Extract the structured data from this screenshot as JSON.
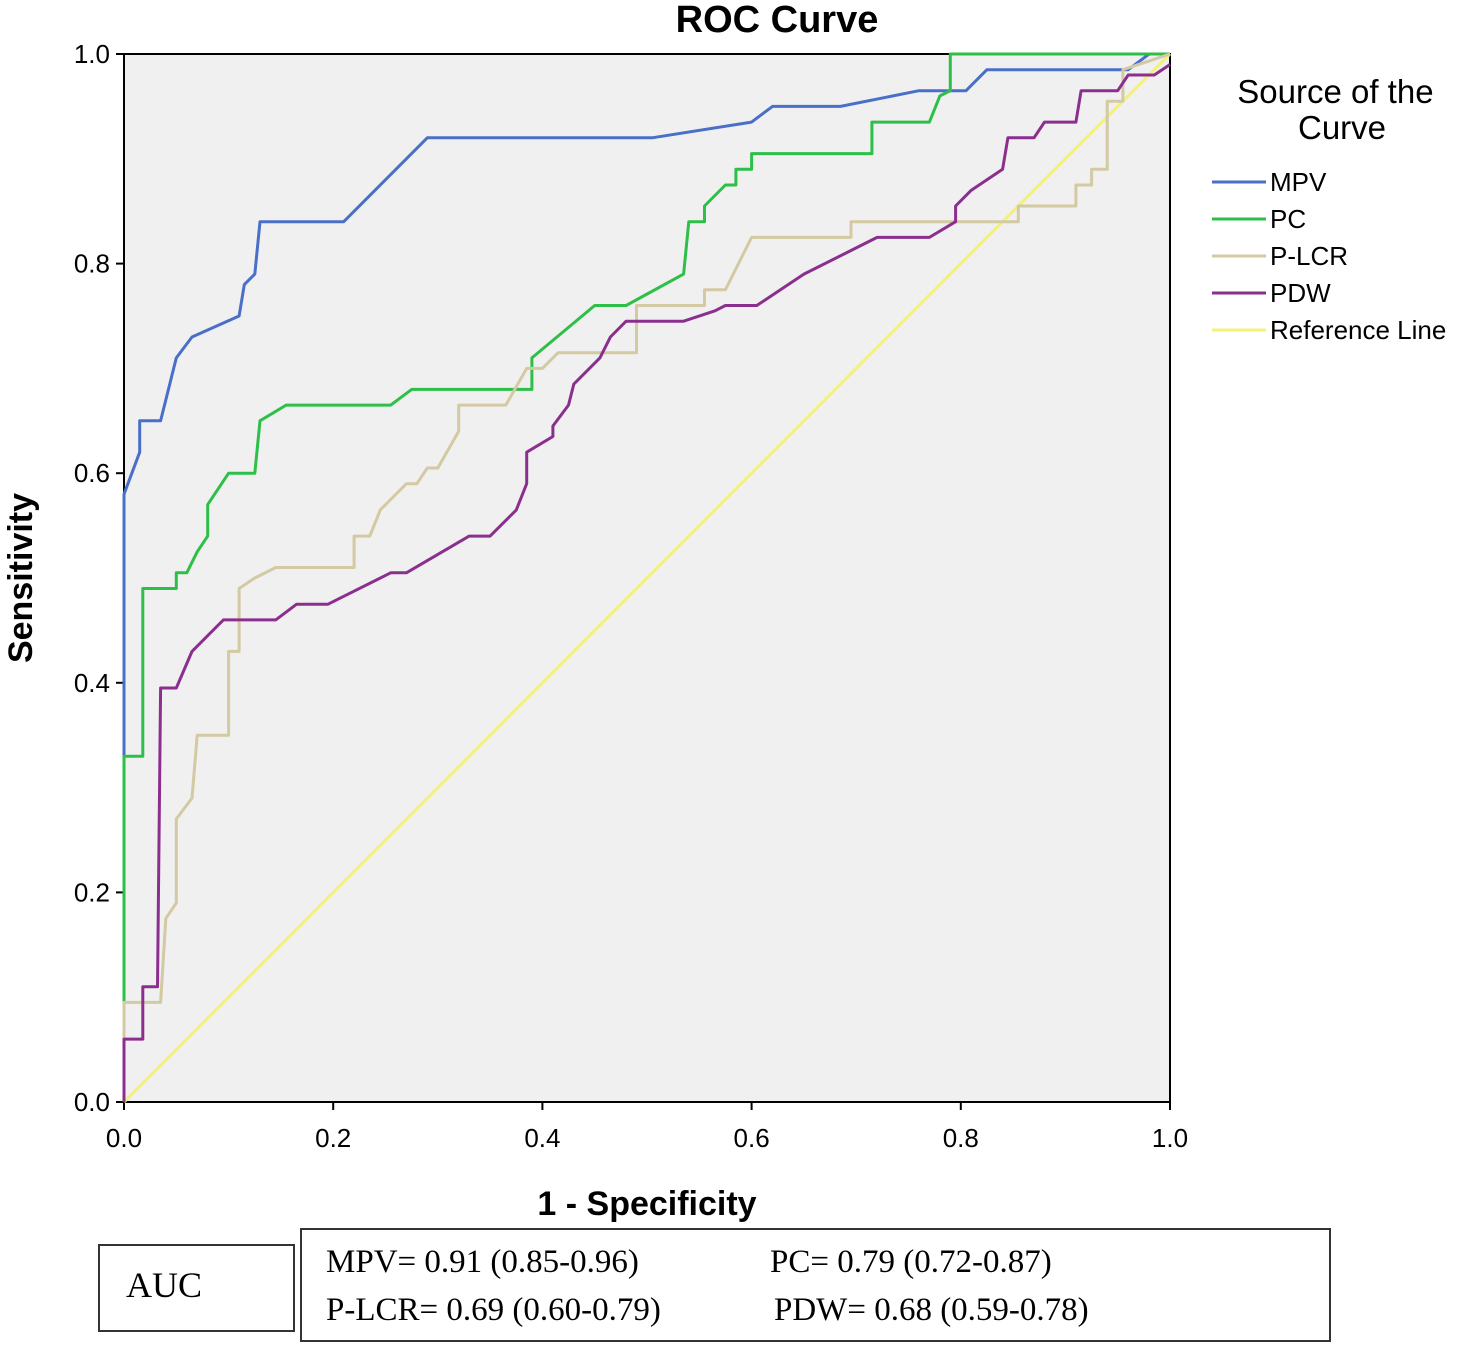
{
  "chart_data": {
    "type": "line",
    "title": "ROC Curve",
    "xlabel": "1 - Specificity",
    "ylabel": "Sensitivity",
    "xlim": [
      0,
      1
    ],
    "ylim": [
      0,
      1
    ],
    "x_ticks": [
      "0.0",
      "0.2",
      "0.4",
      "0.6",
      "0.8",
      "1.0"
    ],
    "y_ticks": [
      "0.0",
      "0.2",
      "0.4",
      "0.6",
      "0.8",
      "1.0"
    ],
    "grid": false,
    "legend_title": "Source of the Curve",
    "legend_position": "right",
    "series": [
      {
        "name": "MPV",
        "color": "#4a6fc7",
        "points": [
          [
            0,
            0
          ],
          [
            0,
            0.58
          ],
          [
            0.015,
            0.62
          ],
          [
            0.015,
            0.65
          ],
          [
            0.035,
            0.65
          ],
          [
            0.05,
            0.71
          ],
          [
            0.065,
            0.73
          ],
          [
            0.11,
            0.75
          ],
          [
            0.115,
            0.78
          ],
          [
            0.125,
            0.79
          ],
          [
            0.13,
            0.84
          ],
          [
            0.21,
            0.84
          ],
          [
            0.29,
            0.92
          ],
          [
            0.505,
            0.92
          ],
          [
            0.6,
            0.935
          ],
          [
            0.62,
            0.95
          ],
          [
            0.685,
            0.95
          ],
          [
            0.76,
            0.965
          ],
          [
            0.805,
            0.965
          ],
          [
            0.825,
            0.985
          ],
          [
            0.96,
            0.985
          ],
          [
            0.98,
            1.0
          ],
          [
            1.0,
            1.0
          ]
        ]
      },
      {
        "name": "PC",
        "color": "#2ebf48",
        "points": [
          [
            0,
            0
          ],
          [
            0,
            0.33
          ],
          [
            0.018,
            0.33
          ],
          [
            0.018,
            0.49
          ],
          [
            0.05,
            0.49
          ],
          [
            0.05,
            0.505
          ],
          [
            0.06,
            0.505
          ],
          [
            0.07,
            0.525
          ],
          [
            0.08,
            0.54
          ],
          [
            0.08,
            0.57
          ],
          [
            0.1,
            0.6
          ],
          [
            0.125,
            0.6
          ],
          [
            0.13,
            0.65
          ],
          [
            0.155,
            0.665
          ],
          [
            0.255,
            0.665
          ],
          [
            0.275,
            0.68
          ],
          [
            0.39,
            0.68
          ],
          [
            0.39,
            0.71
          ],
          [
            0.45,
            0.76
          ],
          [
            0.48,
            0.76
          ],
          [
            0.535,
            0.79
          ],
          [
            0.54,
            0.84
          ],
          [
            0.555,
            0.84
          ],
          [
            0.555,
            0.855
          ],
          [
            0.575,
            0.875
          ],
          [
            0.585,
            0.875
          ],
          [
            0.585,
            0.89
          ],
          [
            0.6,
            0.89
          ],
          [
            0.6,
            0.905
          ],
          [
            0.715,
            0.905
          ],
          [
            0.715,
            0.935
          ],
          [
            0.77,
            0.935
          ],
          [
            0.78,
            0.96
          ],
          [
            0.79,
            0.965
          ],
          [
            0.79,
            1.0
          ],
          [
            1.0,
            1.0
          ]
        ]
      },
      {
        "name": "P-LCR",
        "color": "#d3c9a2",
        "points": [
          [
            0,
            0
          ],
          [
            0,
            0.095
          ],
          [
            0.035,
            0.095
          ],
          [
            0.04,
            0.175
          ],
          [
            0.05,
            0.19
          ],
          [
            0.05,
            0.27
          ],
          [
            0.065,
            0.29
          ],
          [
            0.07,
            0.35
          ],
          [
            0.1,
            0.35
          ],
          [
            0.1,
            0.43
          ],
          [
            0.11,
            0.43
          ],
          [
            0.11,
            0.49
          ],
          [
            0.125,
            0.5
          ],
          [
            0.145,
            0.51
          ],
          [
            0.22,
            0.51
          ],
          [
            0.22,
            0.54
          ],
          [
            0.235,
            0.54
          ],
          [
            0.245,
            0.565
          ],
          [
            0.27,
            0.59
          ],
          [
            0.28,
            0.59
          ],
          [
            0.29,
            0.605
          ],
          [
            0.3,
            0.605
          ],
          [
            0.32,
            0.64
          ],
          [
            0.32,
            0.665
          ],
          [
            0.365,
            0.665
          ],
          [
            0.385,
            0.7
          ],
          [
            0.4,
            0.7
          ],
          [
            0.415,
            0.715
          ],
          [
            0.49,
            0.715
          ],
          [
            0.49,
            0.76
          ],
          [
            0.555,
            0.76
          ],
          [
            0.555,
            0.775
          ],
          [
            0.575,
            0.775
          ],
          [
            0.6,
            0.825
          ],
          [
            0.695,
            0.825
          ],
          [
            0.695,
            0.84
          ],
          [
            0.855,
            0.84
          ],
          [
            0.855,
            0.855
          ],
          [
            0.91,
            0.855
          ],
          [
            0.91,
            0.875
          ],
          [
            0.925,
            0.875
          ],
          [
            0.925,
            0.89
          ],
          [
            0.94,
            0.89
          ],
          [
            0.94,
            0.955
          ],
          [
            0.955,
            0.955
          ],
          [
            0.955,
            0.985
          ],
          [
            1.0,
            1.0
          ]
        ]
      },
      {
        "name": "PDW",
        "color": "#8b2f8e",
        "points": [
          [
            0,
            0
          ],
          [
            0,
            0.06
          ],
          [
            0.018,
            0.06
          ],
          [
            0.018,
            0.11
          ],
          [
            0.032,
            0.11
          ],
          [
            0.035,
            0.395
          ],
          [
            0.05,
            0.395
          ],
          [
            0.065,
            0.43
          ],
          [
            0.095,
            0.46
          ],
          [
            0.145,
            0.46
          ],
          [
            0.165,
            0.475
          ],
          [
            0.195,
            0.475
          ],
          [
            0.255,
            0.505
          ],
          [
            0.27,
            0.505
          ],
          [
            0.33,
            0.54
          ],
          [
            0.35,
            0.54
          ],
          [
            0.375,
            0.565
          ],
          [
            0.385,
            0.59
          ],
          [
            0.385,
            0.62
          ],
          [
            0.41,
            0.635
          ],
          [
            0.41,
            0.645
          ],
          [
            0.425,
            0.665
          ],
          [
            0.43,
            0.685
          ],
          [
            0.455,
            0.71
          ],
          [
            0.465,
            0.73
          ],
          [
            0.48,
            0.745
          ],
          [
            0.535,
            0.745
          ],
          [
            0.565,
            0.755
          ],
          [
            0.575,
            0.76
          ],
          [
            0.605,
            0.76
          ],
          [
            0.65,
            0.79
          ],
          [
            0.7,
            0.815
          ],
          [
            0.72,
            0.825
          ],
          [
            0.77,
            0.825
          ],
          [
            0.795,
            0.84
          ],
          [
            0.795,
            0.855
          ],
          [
            0.81,
            0.87
          ],
          [
            0.84,
            0.89
          ],
          [
            0.845,
            0.92
          ],
          [
            0.87,
            0.92
          ],
          [
            0.88,
            0.935
          ],
          [
            0.91,
            0.935
          ],
          [
            0.915,
            0.965
          ],
          [
            0.95,
            0.965
          ],
          [
            0.96,
            0.98
          ],
          [
            0.985,
            0.98
          ],
          [
            1.0,
            0.99
          ]
        ]
      },
      {
        "name": "Reference Line",
        "color": "#f5f07a",
        "points": [
          [
            0,
            0
          ],
          [
            1,
            1
          ]
        ]
      }
    ]
  },
  "auc": {
    "label": "AUC",
    "mpv": "MPV= 0.91 (0.85-0.96)",
    "pc": "PC= 0.79 (0.72-0.87)",
    "plcr": "P-LCR= 0.69 (0.60-0.79)",
    "pdw": "PDW= 0.68 (0.59-0.78)"
  },
  "colors": {
    "plot_background": "#f0f0f0",
    "axis": "#000000"
  }
}
